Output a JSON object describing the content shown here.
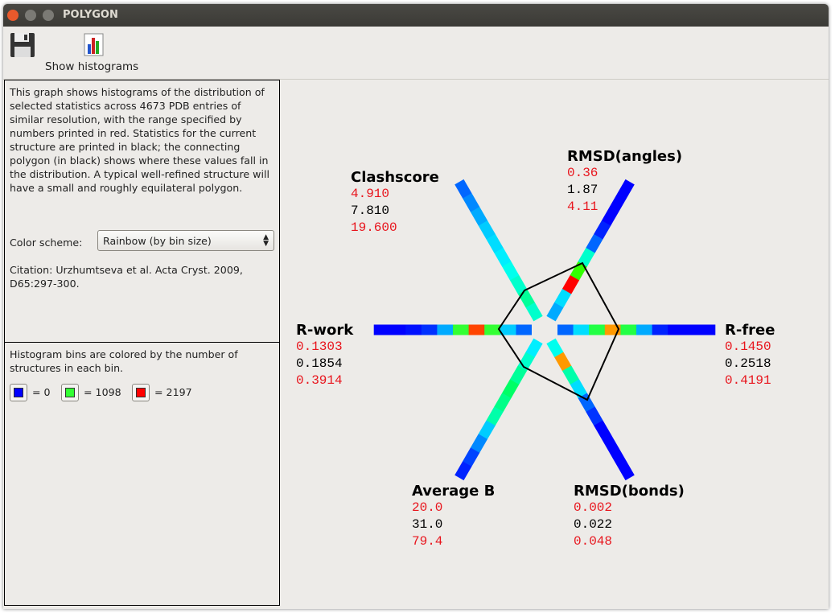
{
  "window": {
    "title": "POLYGON"
  },
  "toolbar": {
    "show_histograms": "Show histograms"
  },
  "info_panel": {
    "description": "This graph shows histograms of the distribution of selected statistics across 4673 PDB entries of similar resolution, with the range specified by numbers printed in red. Statistics for the current structure are printed in black; the connecting polygon (in black) shows where these values fall in the distribution. A typical well-refined structure will have a small and roughly equilateral polygon.",
    "color_scheme_label": "Color scheme:",
    "color_scheme_value": "Rainbow (by bin size)",
    "citation": "Citation: Urzhumtseva et al. Acta Cryst. 2009, D65:297-300."
  },
  "legend_panel": {
    "text": "Histogram bins are colored by the number of structures in each bin.",
    "items": [
      {
        "color": "#0000ff",
        "label": "= 0"
      },
      {
        "color": "#33ff33",
        "label": "= 1098"
      },
      {
        "color": "#ff0000",
        "label": "= 2197"
      }
    ]
  },
  "graph": {
    "axes": [
      {
        "label": "Clashscore",
        "low": "4.910",
        "value": "7.810",
        "high": "19.600",
        "bin_colors": [
          "#00ffcc",
          "#00ff99",
          "#00ffcc",
          "#00ffee",
          "#00eeff",
          "#00ddff",
          "#00ccff",
          "#00aaff",
          "#0088ff",
          "#0066ff"
        ]
      },
      {
        "label": "RMSD(angles)",
        "low": "0.36",
        "value": "1.87",
        "high": "4.11",
        "bin_colors": [
          "#00aaff",
          "#00ddff",
          "#ff0000",
          "#33ff00",
          "#00ffcc",
          "#0066ff",
          "#0022ff",
          "#0000ff",
          "#0000ff",
          "#0000ff"
        ]
      },
      {
        "label": "R-free",
        "low": "0.1450",
        "value": "0.2518",
        "high": "0.4191",
        "bin_colors": [
          "#0066ff",
          "#00ddff",
          "#22ff44",
          "#ff9900",
          "#22ff44",
          "#00aaff",
          "#0022ff",
          "#0000ff",
          "#0000ff",
          "#0000ff"
        ]
      },
      {
        "label": "RMSD(bonds)",
        "low": "0.002",
        "value": "0.022",
        "high": "0.048",
        "bin_colors": [
          "#00ffee",
          "#ff9900",
          "#00ffaa",
          "#00ddff",
          "#0066ff",
          "#0033ff",
          "#0000ff",
          "#0000ff",
          "#0000ff",
          "#0000ff"
        ]
      },
      {
        "label": "Average B",
        "low": "20.0",
        "value": "31.0",
        "high": "79.4",
        "bin_colors": [
          "#00eeff",
          "#00ffcc",
          "#00ff99",
          "#00ff66",
          "#00ff88",
          "#00ffaa",
          "#00ccff",
          "#0088ff",
          "#0044ff",
          "#0022ff"
        ]
      },
      {
        "label": "R-work",
        "low": "0.1303",
        "value": "0.1854",
        "high": "0.3914",
        "bin_colors": [
          "#0066ff",
          "#00ccff",
          "#33ff33",
          "#ff4400",
          "#33ff33",
          "#00aaff",
          "#0030ff",
          "#0010ff",
          "#0000ff",
          "#0000ff"
        ]
      }
    ]
  }
}
